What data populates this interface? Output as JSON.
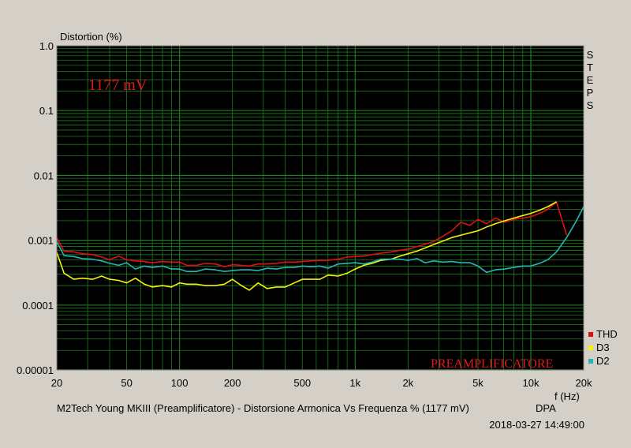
{
  "chart_data": {
    "type": "line",
    "ylabel": "Distortion (%)",
    "xlabel": "f (Hz)",
    "x_scale": "log",
    "y_scale": "log",
    "xlim": [
      20,
      20000
    ],
    "ylim": [
      1e-05,
      1.0
    ],
    "x_ticks": [
      20,
      50,
      100,
      200,
      500,
      1000,
      2000,
      5000,
      10000,
      20000
    ],
    "x_tick_labels": [
      "20",
      "50",
      "100",
      "200",
      "500",
      "1k",
      "2k",
      "5k",
      "10k",
      "20k"
    ],
    "y_ticks": [
      1.0,
      0.1,
      0.01,
      0.001,
      0.0001,
      1e-05
    ],
    "y_tick_labels": [
      "1.0",
      "0.1",
      "0.01",
      "0.001",
      "0.0001",
      "0.00001"
    ],
    "grid": true,
    "legend_position": "bottom-right",
    "annotation_level": "1177 mV",
    "annotation_brand": "PREAMPLIFICATORE",
    "side_label": "STEPS",
    "caption": "M2Tech Young MKIII (Preamplificatore) - Distorsione Armonica Vs Frequenza % (1177 mV)",
    "caption_tag": "DPA",
    "timestamp": "2018-03-27 14:49:00",
    "series": [
      {
        "name": "THD",
        "color": "#e01010",
        "x": [
          20,
          22,
          25,
          28,
          32,
          36,
          40,
          45,
          50,
          56,
          63,
          70,
          80,
          90,
          100,
          110,
          125,
          140,
          160,
          180,
          200,
          225,
          250,
          280,
          315,
          355,
          400,
          450,
          500,
          560,
          630,
          700,
          800,
          900,
          1000,
          1120,
          1250,
          1400,
          1600,
          1800,
          2000,
          2250,
          2500,
          2800,
          3150,
          3550,
          4000,
          4500,
          5000,
          5600,
          6300,
          7100,
          8000,
          9000,
          10000,
          11200,
          12500,
          14000,
          16000
        ],
        "y": [
          0.0011,
          0.00068,
          0.00066,
          0.00062,
          0.0006,
          0.00055,
          0.0005,
          0.00057,
          0.0005,
          0.00048,
          0.00047,
          0.00045,
          0.00047,
          0.00046,
          0.00046,
          0.00041,
          0.00041,
          0.00044,
          0.00043,
          0.00039,
          0.00042,
          0.00041,
          0.0004,
          0.00043,
          0.00043,
          0.00044,
          0.00046,
          0.00046,
          0.00047,
          0.00048,
          0.00049,
          0.00049,
          0.00051,
          0.00055,
          0.00056,
          0.00057,
          0.0006,
          0.00063,
          0.00066,
          0.0007,
          0.00073,
          0.0008,
          0.00087,
          0.00096,
          0.00115,
          0.0014,
          0.0019,
          0.0017,
          0.0021,
          0.0018,
          0.0022,
          0.0019,
          0.0021,
          0.0022,
          0.0023,
          0.0026,
          0.003,
          0.0039,
          0.0012
        ]
      },
      {
        "name": "D3",
        "color": "#f2f20a",
        "x": [
          20,
          22,
          25,
          28,
          32,
          36,
          40,
          45,
          50,
          56,
          63,
          70,
          80,
          90,
          100,
          110,
          125,
          140,
          160,
          180,
          200,
          225,
          250,
          280,
          315,
          355,
          400,
          450,
          500,
          560,
          630,
          700,
          800,
          900,
          1000,
          1120,
          1250,
          1400,
          1600,
          1800,
          2000,
          2250,
          2500,
          2800,
          3150,
          3550,
          4000,
          4500,
          5000,
          5600,
          6300,
          7100,
          8000,
          9000,
          10000,
          11200,
          12500,
          14000
        ],
        "y": [
          0.00065,
          0.00031,
          0.00025,
          0.00026,
          0.00025,
          0.00028,
          0.00025,
          0.00024,
          0.00022,
          0.00026,
          0.00021,
          0.00019,
          0.0002,
          0.00019,
          0.00022,
          0.00021,
          0.00021,
          0.0002,
          0.0002,
          0.00021,
          0.00025,
          0.0002,
          0.00017,
          0.00022,
          0.00018,
          0.00019,
          0.00019,
          0.00022,
          0.00025,
          0.00025,
          0.00025,
          0.00029,
          0.00028,
          0.00031,
          0.00036,
          0.00041,
          0.00044,
          0.00049,
          0.00051,
          0.00057,
          0.00062,
          0.00068,
          0.00076,
          0.00086,
          0.00097,
          0.0011,
          0.0012,
          0.0013,
          0.0014,
          0.0016,
          0.0018,
          0.002,
          0.0022,
          0.0024,
          0.0026,
          0.0029,
          0.0033,
          0.0039
        ]
      },
      {
        "name": "D2",
        "color": "#20b8b8",
        "x": [
          20,
          22,
          25,
          28,
          32,
          36,
          40,
          45,
          50,
          56,
          63,
          70,
          80,
          90,
          100,
          110,
          125,
          140,
          160,
          180,
          200,
          225,
          250,
          280,
          315,
          355,
          400,
          450,
          500,
          560,
          630,
          700,
          800,
          900,
          1000,
          1120,
          1250,
          1400,
          1600,
          1800,
          2000,
          2250,
          2500,
          2800,
          3150,
          3550,
          4000,
          4500,
          5000,
          5600,
          6300,
          7100,
          8000,
          9000,
          10000,
          11200,
          12500,
          14000,
          16000,
          18000,
          20000
        ],
        "y": [
          0.00095,
          0.00058,
          0.00056,
          0.00052,
          0.00051,
          0.00048,
          0.00044,
          0.00041,
          0.00045,
          0.00036,
          0.0004,
          0.00038,
          0.0004,
          0.00036,
          0.00036,
          0.00033,
          0.00033,
          0.00036,
          0.00035,
          0.00033,
          0.00034,
          0.00035,
          0.00035,
          0.00034,
          0.00037,
          0.00036,
          0.00038,
          0.00038,
          0.0004,
          0.00039,
          0.0004,
          0.00037,
          0.00043,
          0.00044,
          0.00045,
          0.00043,
          0.00046,
          0.00051,
          0.00051,
          0.00051,
          0.00049,
          0.00052,
          0.00045,
          0.00048,
          0.00046,
          0.00047,
          0.00045,
          0.00045,
          0.0004,
          0.00032,
          0.00035,
          0.00036,
          0.00038,
          0.0004,
          0.0004,
          0.00044,
          0.0005,
          0.00066,
          0.0011,
          0.0019,
          0.0033
        ]
      }
    ]
  }
}
